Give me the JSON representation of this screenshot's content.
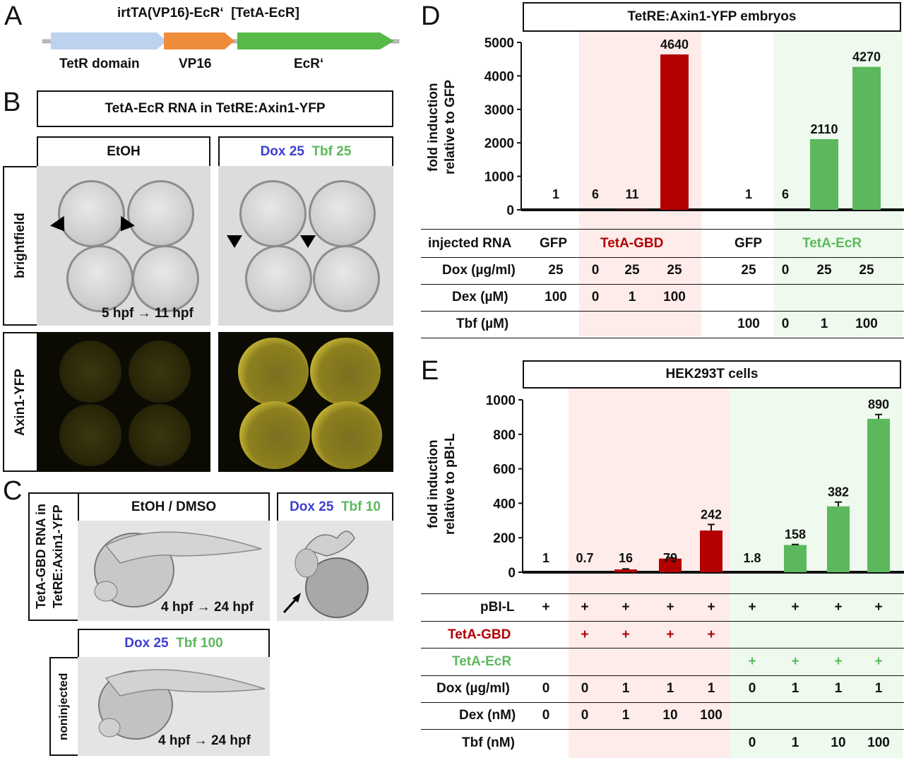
{
  "panels": {
    "A": "A",
    "B": "B",
    "C": "C",
    "D": "D",
    "E": "E"
  },
  "panelA": {
    "construct_title": "irtTA(VP16)-EcR‘",
    "construct_alias": "[TetA-EcR]",
    "domains": [
      "TetR domain",
      "VP16",
      "EcR‘"
    ],
    "colors": {
      "tetr": "#bcd2ef",
      "vp16": "#ef8c3a",
      "ecr": "#57b948"
    }
  },
  "panelB": {
    "title": "TetA-EcR RNA in TetRE:Axin1-YFP",
    "col1": "EtOH",
    "col2_dox": "Dox 25",
    "col2_tbf": "Tbf 25",
    "row1": "brightfield",
    "row2": "Axin1-YFP",
    "time": "5 hpf → 11 hpf"
  },
  "panelC": {
    "rowlabel": "TetA-GBD RNA in TetRE:Axin1-YFP",
    "col1": "EtOH / DMSO",
    "col2_dox": "Dox 25",
    "col2_tbf": "Tbf 10",
    "time1": "4 hpf → 24 hpf",
    "bottom_dox": "Dox 25",
    "bottom_tbf": "Tbf 100",
    "bottom_rowlabel": "noninjected",
    "time2": "4 hpf → 24 hpf"
  },
  "panelD": {
    "title": "TetRE:Axin1-YFP embryos",
    "ylabel_line1": "fold induction",
    "ylabel_line2": "relative to GFP",
    "table": {
      "row_labels": [
        "injected RNA",
        "Dox (µg/ml)",
        "Dex (µM)",
        "Tbf (µM)"
      ],
      "groups": [
        "GFP",
        "TetA-GBD",
        "GFP",
        "TetA-EcR"
      ],
      "dox": [
        "25",
        "0",
        "25",
        "25",
        "25",
        "0",
        "25",
        "25"
      ],
      "dex": [
        "100",
        "0",
        "1",
        "100",
        "",
        "",
        "",
        ""
      ],
      "tbf": [
        "",
        "",
        "",
        "",
        "100",
        "0",
        "1",
        "100"
      ]
    }
  },
  "panelE": {
    "title": "HEK293T cells",
    "ylabel_line1": "fold induction",
    "ylabel_line2": "relative to pBI-L",
    "table": {
      "row_labels": [
        "pBI-L",
        "TetA-GBD",
        "TetA-EcR",
        "Dox (µg/ml)",
        "Dex (nM)",
        "Tbf (nM)"
      ],
      "pbil": [
        "+",
        "+",
        "+",
        "+",
        "+",
        "+",
        "+",
        "+",
        "+"
      ],
      "gbd": [
        "",
        "+",
        "+",
        "+",
        "+",
        "",
        "",
        "",
        ""
      ],
      "ecr": [
        "",
        "",
        "",
        "",
        "",
        "+",
        "+",
        "+",
        "+"
      ],
      "dox": [
        "0",
        "0",
        "1",
        "1",
        "1",
        "0",
        "1",
        "1",
        "1"
      ],
      "dex": [
        "0",
        "0",
        "1",
        "10",
        "100",
        "",
        "",
        "",
        ""
      ],
      "tbf": [
        "",
        "",
        "",
        "",
        "",
        "0",
        "1",
        "10",
        "100"
      ]
    }
  },
  "chart_data": [
    {
      "type": "bar",
      "title": "TetRE:Axin1-YFP embryos",
      "ylabel": "fold induction relative to GFP",
      "ylim": [
        0,
        5000
      ],
      "yticks": [
        0,
        1000,
        2000,
        3000,
        4000,
        5000
      ],
      "values": [
        1,
        6,
        11,
        4640,
        1,
        6,
        2110,
        4270
      ],
      "labels": [
        "1",
        "6",
        "11",
        "4640",
        "1",
        "6",
        "2110",
        "4270"
      ],
      "colors": [
        "#b30000",
        "#b30000",
        "#b30000",
        "#b30000",
        "#5cb85c",
        "#5cb85c",
        "#5cb85c",
        "#5cb85c"
      ]
    },
    {
      "type": "bar",
      "title": "HEK293T cells",
      "ylabel": "fold induction relative to pBI-L",
      "ylim": [
        0,
        1000
      ],
      "yticks": [
        0,
        200,
        400,
        600,
        800,
        1000
      ],
      "values": [
        1,
        0.7,
        16,
        79,
        242,
        1.8,
        158,
        382,
        890
      ],
      "errors": [
        0,
        0,
        3,
        5,
        35,
        0,
        3,
        25,
        25
      ],
      "labels": [
        "1",
        "0.7",
        "16",
        "79",
        "242",
        "1.8",
        "158",
        "382",
        "890"
      ],
      "colors": [
        "#b30000",
        "#b30000",
        "#b30000",
        "#b30000",
        "#b30000",
        "#5cb85c",
        "#5cb85c",
        "#5cb85c",
        "#5cb85c"
      ]
    }
  ]
}
